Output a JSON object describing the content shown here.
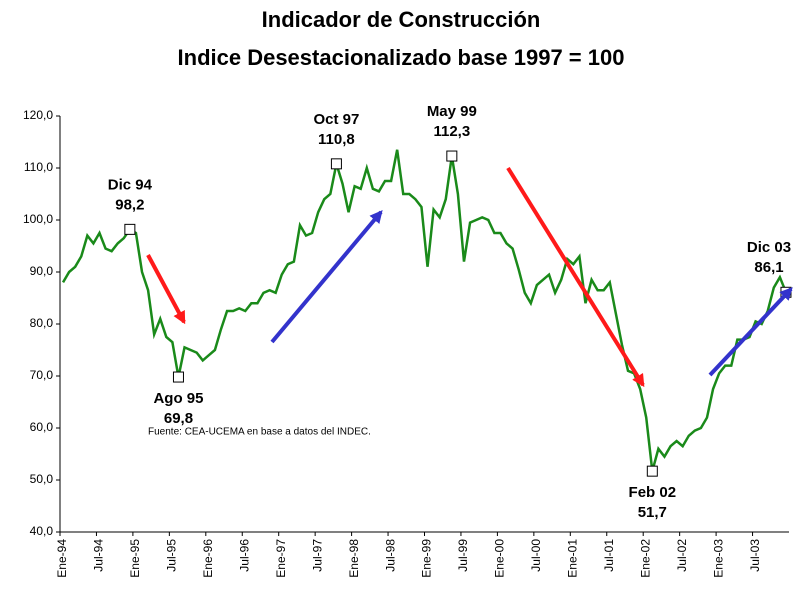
{
  "chart_data": {
    "type": "line",
    "title": "Indicador de Construcción",
    "subtitle": "Indice Desestacionalizado base 1997 = 100",
    "source": "Fuente: CEA-UCEMA en base a datos del INDEC.",
    "categories": [
      "Ene-94",
      null,
      null,
      null,
      null,
      null,
      "Jul-94",
      null,
      null,
      null,
      null,
      null,
      "Ene-95",
      null,
      null,
      null,
      null,
      null,
      "Jul-95",
      null,
      null,
      null,
      null,
      null,
      "Ene-96",
      null,
      null,
      null,
      null,
      null,
      "Jul-96",
      null,
      null,
      null,
      null,
      null,
      "Ene-97",
      null,
      null,
      null,
      null,
      null,
      "Jul-97",
      null,
      null,
      null,
      null,
      null,
      "Ene-98",
      null,
      null,
      null,
      null,
      null,
      "Jul-98",
      null,
      null,
      null,
      null,
      null,
      "Ene-99",
      null,
      null,
      null,
      null,
      null,
      "Jul-99",
      null,
      null,
      null,
      null,
      null,
      "Ene-00",
      null,
      null,
      null,
      null,
      null,
      "Jul-00",
      null,
      null,
      null,
      null,
      null,
      "Ene-01",
      null,
      null,
      null,
      null,
      null,
      "Jul-01",
      null,
      null,
      null,
      null,
      null,
      "Ene-02",
      null,
      null,
      null,
      null,
      null,
      "Jul-02",
      null,
      null,
      null,
      null,
      null,
      "Ene-03",
      null,
      null,
      null,
      null,
      null,
      "Jul-03",
      null,
      null,
      null,
      null,
      null
    ],
    "series": [
      {
        "name": null,
        "color": "#1a8a1a",
        "values": [
          88,
          90,
          91,
          93,
          97,
          95.5,
          97.5,
          94.5,
          94,
          95.5,
          96.5,
          98.2,
          97.5,
          90,
          86.5,
          78,
          81,
          77.5,
          76.5,
          69.8,
          75.5,
          75,
          74.5,
          73,
          74,
          75,
          79,
          82.5,
          82.5,
          83,
          82.5,
          84,
          84,
          86,
          86.5,
          86,
          89.5,
          91.5,
          92,
          99,
          97,
          97.5,
          101.5,
          104,
          105,
          110.8,
          107,
          101.5,
          106.5,
          106,
          110,
          106,
          105.5,
          107.5,
          107.5,
          113.5,
          105,
          105,
          104,
          102.5,
          91,
          102,
          100.5,
          104,
          112.3,
          105,
          92,
          99.5,
          100,
          100.5,
          100,
          97.5,
          97.5,
          95.5,
          94.5,
          90.5,
          86,
          84,
          87.5,
          88.5,
          89.5,
          86,
          88.5,
          92.5,
          91.5,
          93,
          84,
          88.5,
          86.5,
          86.5,
          88,
          82,
          76,
          71,
          70.5,
          67.5,
          62,
          51.7,
          56,
          54.5,
          56.5,
          57.5,
          56.5,
          58.5,
          59.5,
          60,
          62,
          67.5,
          70.5,
          72,
          72,
          77,
          77,
          77.5,
          80.5,
          80,
          82.5,
          87,
          89,
          86.1
        ],
        "point_labels": [
          null,
          null,
          null,
          null,
          null,
          null,
          null,
          null,
          null,
          null,
          null,
          "Dic 94",
          null,
          null,
          null,
          null,
          null,
          null,
          null,
          "Ago 95",
          null,
          null,
          null,
          null,
          null,
          null,
          null,
          null,
          null,
          null,
          null,
          null,
          null,
          null,
          null,
          null,
          null,
          null,
          null,
          null,
          null,
          null,
          null,
          null,
          null,
          "Oct 97",
          null,
          null,
          null,
          null,
          null,
          null,
          null,
          null,
          null,
          null,
          null,
          null,
          null,
          null,
          null,
          null,
          null,
          null,
          "May 99",
          null,
          null,
          null,
          null,
          null,
          null,
          null,
          null,
          null,
          null,
          null,
          null,
          null,
          null,
          null,
          null,
          null,
          null,
          null,
          null,
          null,
          null,
          null,
          null,
          null,
          null,
          null,
          null,
          null,
          null,
          null,
          null,
          "Feb 02",
          null,
          null,
          null,
          null,
          null,
          null,
          null,
          null,
          null,
          null,
          null,
          null,
          null,
          null,
          null,
          null,
          null,
          null,
          null,
          null,
          null,
          "Dic 03"
        ],
        "value_labels": [
          null,
          null,
          null,
          null,
          null,
          null,
          null,
          null,
          null,
          null,
          null,
          "98,2",
          null,
          null,
          null,
          null,
          null,
          null,
          null,
          "69,8",
          null,
          null,
          null,
          null,
          null,
          null,
          null,
          null,
          null,
          null,
          null,
          null,
          null,
          null,
          null,
          null,
          null,
          null,
          null,
          null,
          null,
          null,
          null,
          null,
          null,
          "110,8",
          null,
          null,
          null,
          null,
          null,
          null,
          null,
          null,
          null,
          null,
          null,
          null,
          null,
          null,
          null,
          null,
          null,
          null,
          "112,3",
          null,
          null,
          null,
          null,
          null,
          null,
          null,
          null,
          null,
          null,
          null,
          null,
          null,
          null,
          null,
          null,
          null,
          null,
          null,
          null,
          null,
          null,
          null,
          null,
          null,
          null,
          null,
          null,
          null,
          null,
          null,
          null,
          "51,7",
          null,
          null,
          null,
          null,
          null,
          null,
          null,
          null,
          null,
          null,
          null,
          null,
          null,
          null,
          null,
          null,
          null,
          null,
          null,
          null,
          null,
          "86,1"
        ]
      }
    ],
    "ylim": [
      40,
      120
    ],
    "yticks": [
      {
        "value": 40,
        "label": "40,0"
      },
      {
        "value": 50,
        "label": "50,0"
      },
      {
        "value": 60,
        "label": "60,0"
      },
      {
        "value": 70,
        "label": "70,0"
      },
      {
        "value": 80,
        "label": "80,0"
      },
      {
        "value": 90,
        "label": "90,0"
      },
      {
        "value": 100,
        "label": "100,0"
      },
      {
        "value": 110,
        "label": "110,0"
      },
      {
        "value": 120,
        "label": "120,0"
      }
    ]
  }
}
